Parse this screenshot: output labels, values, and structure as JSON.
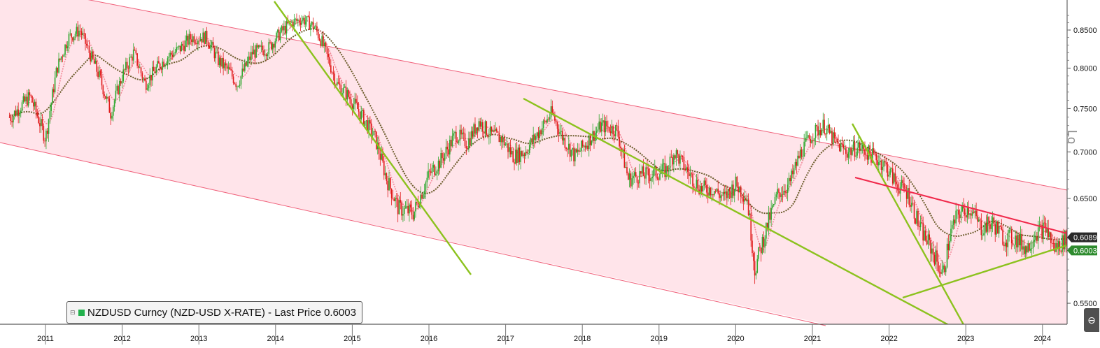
{
  "legend": {
    "collapse_glyph": "⊟",
    "text": "NZDUSD Curncy (NZD-USD X-RATE) - Last Price 0.6003",
    "swatch_color": "#22b14c"
  },
  "side_label": "Lo",
  "corner_icon": "chart-tools-icon",
  "colors": {
    "channel_fill": "#ffe4ea",
    "channel_line": "#f0607a",
    "trend_green": "#8cc21e",
    "resistance_red": "#f0284a",
    "candle_up": "#2fa82f",
    "candle_down": "#e01a1a",
    "ma_fast": "#f28a9a",
    "ma_slow": "#6b5b2a",
    "price_tag_1": "#2a2a2a",
    "price_tag_2": "#2e8b2e"
  },
  "chart_data": {
    "type": "line",
    "title": "",
    "series_name": "NZDUSD Curncy (NZD-USD X-RATE) - Last Price",
    "xlabel": "",
    "ylabel": "",
    "x_tick_labels": [
      "2011",
      "2012",
      "2013",
      "2014",
      "2015",
      "2016",
      "2017",
      "2018",
      "2019",
      "2020",
      "2021",
      "2022",
      "2023",
      "2024"
    ],
    "y_tick_labels": [
      "0.5500",
      "0.6500",
      "0.7000",
      "0.7500",
      "0.8000",
      "0.8500"
    ],
    "y_scale": "log",
    "xlim": [
      2010.53,
      2024.45
    ],
    "ylim": [
      0.539,
      0.895
    ],
    "grid": false,
    "last_price_labels": [
      "0.6089",
      "0.6003"
    ],
    "x": [
      2010.55,
      2010.8,
      2011.0,
      2011.15,
      2011.3,
      2011.45,
      2011.55,
      2011.7,
      2011.85,
      2012.0,
      2012.15,
      2012.3,
      2012.45,
      2012.6,
      2012.75,
      2012.9,
      2013.1,
      2013.25,
      2013.4,
      2013.5,
      2013.7,
      2013.9,
      2014.05,
      2014.2,
      2014.35,
      2014.5,
      2014.6,
      2014.8,
      2014.95,
      2015.1,
      2015.3,
      2015.45,
      2015.6,
      2015.8,
      2016.0,
      2016.15,
      2016.35,
      2016.5,
      2016.65,
      2016.8,
      2016.95,
      2017.1,
      2017.25,
      2017.45,
      2017.6,
      2017.75,
      2017.9,
      2018.1,
      2018.25,
      2018.45,
      2018.6,
      2018.75,
      2018.9,
      2019.1,
      2019.2,
      2019.4,
      2019.55,
      2019.7,
      2019.85,
      2020.0,
      2020.15,
      2020.25,
      2020.4,
      2020.55,
      2020.7,
      2020.85,
      2021.0,
      2021.15,
      2021.3,
      2021.45,
      2021.6,
      2021.8,
      2021.95,
      2022.1,
      2022.25,
      2022.4,
      2022.55,
      2022.7,
      2022.8,
      2022.9,
      2023.05,
      2023.2,
      2023.35,
      2023.5,
      2023.65,
      2023.8,
      2023.9,
      2024.05,
      2024.15,
      2024.25,
      2024.35,
      2024.44
    ],
    "values": [
      0.74,
      0.765,
      0.715,
      0.8,
      0.84,
      0.85,
      0.825,
      0.79,
      0.745,
      0.79,
      0.82,
      0.78,
      0.8,
      0.815,
      0.825,
      0.84,
      0.84,
      0.81,
      0.795,
      0.78,
      0.82,
      0.825,
      0.845,
      0.86,
      0.865,
      0.855,
      0.835,
      0.78,
      0.765,
      0.745,
      0.715,
      0.67,
      0.64,
      0.635,
      0.675,
      0.69,
      0.72,
      0.71,
      0.735,
      0.72,
      0.715,
      0.695,
      0.7,
      0.725,
      0.745,
      0.715,
      0.695,
      0.715,
      0.73,
      0.725,
      0.67,
      0.675,
      0.675,
      0.68,
      0.7,
      0.675,
      0.66,
      0.66,
      0.65,
      0.665,
      0.65,
      0.58,
      0.62,
      0.655,
      0.665,
      0.7,
      0.72,
      0.73,
      0.71,
      0.7,
      0.705,
      0.695,
      0.685,
      0.665,
      0.655,
      0.62,
      0.6,
      0.575,
      0.615,
      0.635,
      0.64,
      0.62,
      0.625,
      0.61,
      0.61,
      0.6,
      0.615,
      0.62,
      0.6,
      0.605,
      0.615,
      0.6003
    ]
  }
}
